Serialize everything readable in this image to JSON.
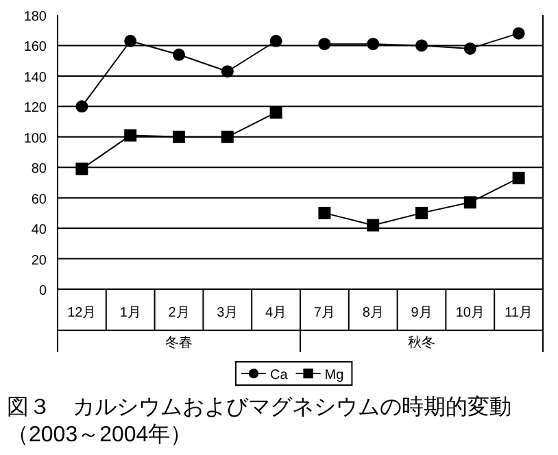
{
  "chart_data": {
    "type": "line",
    "title": "図３　カルシウムおよびマグネシウムの時期的変動",
    "subtitle": "（2003～2004年）",
    "categories": [
      "12月",
      "1月",
      "2月",
      "3月",
      "4月",
      "7月",
      "8月",
      "9月",
      "10月",
      "11月"
    ],
    "series": [
      {
        "name": "Ca",
        "color": "#000000",
        "marker": "circle",
        "values": [
          120,
          163,
          154,
          143,
          163,
          null,
          null,
          null,
          null,
          null
        ]
      },
      {
        "color": "#000000",
        "marker": "circle",
        "values": [
          null,
          null,
          null,
          null,
          null,
          161,
          161,
          160,
          158,
          168
        ]
      },
      {
        "name": "Mg",
        "color": "#000000",
        "marker": "square",
        "values": [
          79,
          101,
          100,
          100,
          116,
          null,
          null,
          null,
          null,
          null
        ]
      },
      {
        "color": "#000000",
        "marker": "square",
        "values": [
          null,
          null,
          null,
          null,
          null,
          50,
          42,
          50,
          57,
          73
        ]
      }
    ],
    "annotations": [
      "冬春",
      "秋冬"
    ],
    "ylim": [
      0,
      180
    ],
    "yticks": [
      0,
      20,
      40,
      60,
      80,
      100,
      120,
      140,
      160,
      180
    ],
    "grid": "y",
    "legend": "bottom",
    "line_style": "solid"
  }
}
